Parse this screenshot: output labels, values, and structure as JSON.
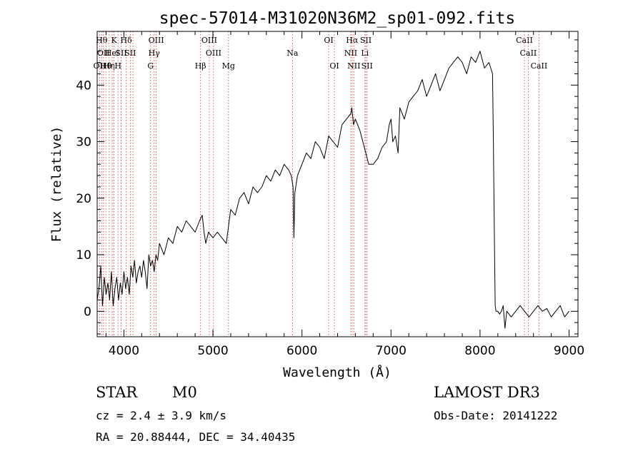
{
  "chart_data": {
    "type": "line",
    "title": "spec-57014-M31020N36M2_sp01-092.fits",
    "xlabel": "Wavelength (Å)",
    "ylabel": "Flux (relative)",
    "xlim": [
      3700,
      9100
    ],
    "ylim": [
      -4.5,
      49.5
    ],
    "xticks": [
      4000,
      5000,
      6000,
      7000,
      8000,
      9000
    ],
    "xtick_labels": [
      "4000",
      "5000",
      "6000",
      "7000",
      "8000",
      "9000"
    ],
    "xminor_step": 200,
    "yticks": [
      0,
      10,
      20,
      30,
      40
    ],
    "ytick_labels": [
      "0",
      "10",
      "20",
      "30",
      "40"
    ],
    "yminor_step": 2,
    "grid": false,
    "series": [
      {
        "name": "spectrum",
        "color": "#000000",
        "x": [
          3700,
          3720,
          3740,
          3760,
          3780,
          3800,
          3820,
          3840,
          3860,
          3880,
          3900,
          3920,
          3940,
          3960,
          3980,
          4000,
          4020,
          4040,
          4060,
          4080,
          4100,
          4120,
          4140,
          4160,
          4180,
          4200,
          4220,
          4240,
          4260,
          4280,
          4300,
          4320,
          4340,
          4360,
          4380,
          4400,
          4450,
          4500,
          4550,
          4600,
          4650,
          4700,
          4750,
          4800,
          4850,
          4880,
          4900,
          4920,
          4950,
          5000,
          5050,
          5100,
          5150,
          5200,
          5250,
          5300,
          5350,
          5400,
          5450,
          5500,
          5550,
          5600,
          5650,
          5700,
          5750,
          5800,
          5850,
          5880,
          5900,
          5910,
          5920,
          5950,
          6000,
          6050,
          6100,
          6150,
          6200,
          6250,
          6300,
          6350,
          6400,
          6450,
          6500,
          6550,
          6560,
          6580,
          6600,
          6650,
          6700,
          6750,
          6800,
          6850,
          6900,
          6950,
          6980,
          7000,
          7020,
          7050,
          7080,
          7100,
          7150,
          7200,
          7250,
          7300,
          7350,
          7400,
          7450,
          7500,
          7550,
          7600,
          7650,
          7700,
          7750,
          7800,
          7850,
          7900,
          7950,
          8000,
          8050,
          8100,
          8120,
          8140,
          8150,
          8160,
          8170,
          8180,
          8200,
          8220,
          8240,
          8260,
          8280,
          8300,
          8350,
          8400,
          8450,
          8500,
          8550,
          8600,
          8650,
          8700,
          8750,
          8800,
          8850,
          8900,
          8950,
          9000
        ],
        "y": [
          2,
          4,
          8,
          1,
          6,
          3,
          5,
          2,
          7,
          1,
          4,
          6,
          2,
          5,
          3,
          7,
          4,
          6,
          3,
          8,
          6,
          9,
          5,
          7,
          8,
          6,
          9,
          7,
          4,
          10,
          8,
          9,
          7,
          10,
          9,
          12,
          10,
          13,
          12,
          15,
          14,
          16,
          15,
          14,
          16,
          17,
          14,
          12,
          14,
          13,
          14,
          13,
          12,
          18,
          17,
          20,
          21,
          19,
          22,
          21,
          22,
          24,
          23,
          25,
          24,
          26,
          25,
          24,
          22,
          13,
          21,
          24,
          26,
          28,
          27,
          30,
          29,
          27,
          31,
          30,
          29,
          33,
          34,
          35,
          36,
          33,
          34,
          32,
          29,
          26,
          26,
          27,
          29,
          30,
          33,
          34,
          30,
          31,
          28,
          36,
          34,
          37,
          38,
          39,
          41,
          38,
          40,
          42,
          39,
          41,
          43,
          44,
          45,
          44,
          42,
          45,
          44,
          46,
          43,
          44,
          43,
          42,
          30,
          15,
          1,
          0,
          0,
          -0.5,
          0,
          1,
          -3,
          0,
          -1,
          0,
          1,
          0,
          -1,
          0,
          1,
          0,
          0.5,
          -1,
          0,
          1,
          -1,
          0
        ]
      }
    ],
    "line_markers": [
      {
        "x": 3727,
        "label": "OII",
        "row": 2
      },
      {
        "x": 3750,
        "label": "Hθ",
        "row": 0
      },
      {
        "x": 3770,
        "label": "OII",
        "row": 1
      },
      {
        "x": 3798,
        "label": "Hθ",
        "row": 2
      },
      {
        "x": 3835,
        "label": "Hη",
        "row": 2
      },
      {
        "x": 3869,
        "label": "HeI",
        "row": 1
      },
      {
        "x": 3889,
        "label": "K",
        "row": 0
      },
      {
        "x": 3934,
        "label": "H",
        "row": 2
      },
      {
        "x": 3969,
        "label": "SII",
        "row": 1
      },
      {
        "x": 4026,
        "label": "Hδ",
        "row": 0
      },
      {
        "x": 4072,
        "label": "SII",
        "row": 1
      },
      {
        "x": 4102,
        "label": "",
        "row": 0
      },
      {
        "x": 4300,
        "label": "G",
        "row": 2
      },
      {
        "x": 4340,
        "label": "Hγ",
        "row": 1
      },
      {
        "x": 4363,
        "label": "OIII",
        "row": 0
      },
      {
        "x": 4861,
        "label": "Hβ",
        "row": 2
      },
      {
        "x": 4959,
        "label": "OIII",
        "row": 0
      },
      {
        "x": 5007,
        "label": "OIII",
        "row": 1
      },
      {
        "x": 5175,
        "label": "Mg",
        "row": 2
      },
      {
        "x": 5893,
        "label": "Na",
        "row": 1
      },
      {
        "x": 6300,
        "label": "OI",
        "row": 0
      },
      {
        "x": 6364,
        "label": "OI",
        "row": 2
      },
      {
        "x": 6548,
        "label": "NII",
        "row": 1
      },
      {
        "x": 6563,
        "label": "Hα",
        "row": 0
      },
      {
        "x": 6583,
        "label": "NII",
        "row": 2
      },
      {
        "x": 6707,
        "label": "Li",
        "row": 1
      },
      {
        "x": 6717,
        "label": "SII",
        "row": 0
      },
      {
        "x": 6731,
        "label": "SII",
        "row": 2
      },
      {
        "x": 8498,
        "label": "CaII",
        "row": 0
      },
      {
        "x": 8542,
        "label": "CaII",
        "row": 1
      },
      {
        "x": 8662,
        "label": "CaII",
        "row": 2
      }
    ],
    "marker_color": "#cc3333"
  },
  "info": {
    "object_class": "STAR",
    "subclass": "M0",
    "survey": "LAMOST DR3",
    "cz_line": "cz = 2.4 ± 3.9 km/s",
    "obs_date_line": "Obs-Date: 20141222",
    "coords_line": "RA =  20.88444, DEC =  34.40435"
  }
}
